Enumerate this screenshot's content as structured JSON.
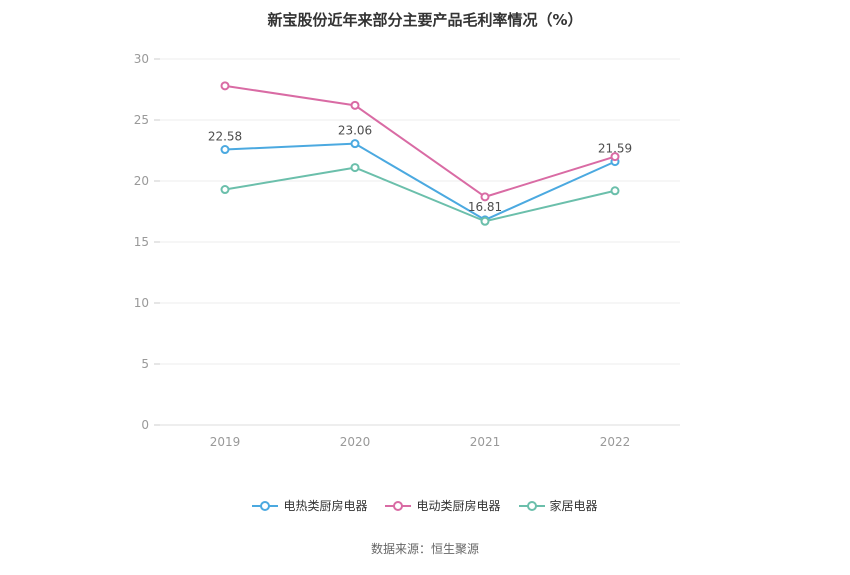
{
  "title": "新宝股份近年来部分主要产品毛利率情况（%）",
  "source": "数据来源：恒生聚源",
  "chart_data": {
    "type": "line",
    "categories": [
      "2019",
      "2020",
      "2021",
      "2022"
    ],
    "series": [
      {
        "name": "电热类厨房电器",
        "color": "#4BA9E0",
        "values": [
          22.58,
          23.06,
          16.81,
          21.59
        ],
        "labels": [
          "22.58",
          "23.06",
          "16.81",
          "21.59"
        ]
      },
      {
        "name": "电动类厨房电器",
        "color": "#D96BA4",
        "values": [
          27.8,
          26.2,
          18.7,
          22.0
        ],
        "labels": null
      },
      {
        "name": "家居电器",
        "color": "#6BBFAB",
        "values": [
          19.3,
          21.1,
          16.7,
          19.2
        ],
        "labels": null
      }
    ],
    "ylim": [
      0,
      30
    ],
    "yticks": [
      0,
      5,
      10,
      15,
      20,
      25,
      30
    ],
    "grid": true,
    "legend_position": "bottom",
    "marker": "hollow-circle",
    "axis_label_color": "#999999",
    "grid_color": "#ececec",
    "data_label_color": "#4d4d4d"
  }
}
